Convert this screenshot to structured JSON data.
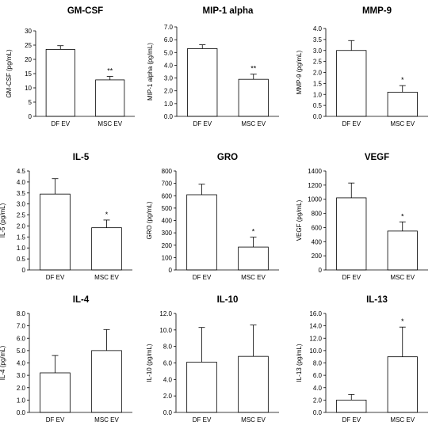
{
  "chart_data": [
    {
      "type": "bar",
      "title": "GM-CSF",
      "ylabel": "GM-CSF (pg/mL)",
      "categories": [
        "DF EV",
        "MSC EV"
      ],
      "values": [
        23.5,
        12.8
      ],
      "errors": [
        1.3,
        1.2
      ],
      "significance": [
        "",
        "**"
      ],
      "ylim": [
        0,
        30
      ],
      "yticks": [
        "0",
        "5",
        "10",
        "15",
        "20",
        "25",
        "30"
      ]
    },
    {
      "type": "bar",
      "title": "MIP-1 alpha",
      "ylabel": "MIP-1 alpha (pg/mL)",
      "categories": [
        "DF EV",
        "MSC EV"
      ],
      "values": [
        5.3,
        2.9
      ],
      "errors": [
        0.3,
        0.4
      ],
      "significance": [
        "",
        "**"
      ],
      "ylim": [
        0,
        7
      ],
      "yticks": [
        "0.0",
        "1.0",
        "2.0",
        "3.0",
        "4.0",
        "5.0",
        "6.0",
        "7.0"
      ]
    },
    {
      "type": "bar",
      "title": "MMP-9",
      "ylabel": "MMP-9 (pg/mL)",
      "categories": [
        "DF EV",
        "MSC EV"
      ],
      "values": [
        3.0,
        1.1
      ],
      "errors": [
        0.45,
        0.3
      ],
      "significance": [
        "",
        "*"
      ],
      "ylim": [
        0,
        4
      ],
      "yticks": [
        "0.0",
        "0.5",
        "1.0",
        "1.5",
        "2.0",
        "2.5",
        "3.0",
        "3.5",
        "4.0"
      ]
    },
    {
      "type": "bar",
      "title": "IL-5",
      "ylabel": "IL-5 (pg/mL)",
      "categories": [
        "DF EV",
        "MSC EV"
      ],
      "values": [
        3.45,
        1.92
      ],
      "errors": [
        0.7,
        0.35
      ],
      "significance": [
        "",
        "*"
      ],
      "ylim": [
        0,
        4.5
      ],
      "yticks": [
        "0",
        "0.5",
        "1.0",
        "1.5",
        "2.0",
        "2.5",
        "3.0",
        "3.5",
        "4.0",
        "4.5"
      ]
    },
    {
      "type": "bar",
      "title": "GRO",
      "ylabel": "GRO (pg/mL)",
      "categories": [
        "DF EV",
        "MSC EV"
      ],
      "values": [
        608,
        185
      ],
      "errors": [
        85,
        80
      ],
      "significance": [
        "",
        "*"
      ],
      "ylim": [
        0,
        800
      ],
      "yticks": [
        "0",
        "100",
        "200",
        "300",
        "400",
        "500",
        "600",
        "700",
        "800"
      ]
    },
    {
      "type": "bar",
      "title": "VEGF",
      "ylabel": "VEGF (pg/mL)",
      "categories": [
        "DF EV",
        "MSC EV"
      ],
      "values": [
        1020,
        550
      ],
      "errors": [
        210,
        130
      ],
      "significance": [
        "",
        "*"
      ],
      "ylim": [
        0,
        1400
      ],
      "yticks": [
        "0",
        "200",
        "400",
        "600",
        "800",
        "1000",
        "1200",
        "1400"
      ]
    },
    {
      "type": "bar",
      "title": "IL-4",
      "ylabel": "IL-4 (pg/mL)",
      "categories": [
        "DF EV",
        "MSC EV"
      ],
      "values": [
        3.2,
        5.0
      ],
      "errors": [
        1.4,
        1.7
      ],
      "significance": [
        "",
        ""
      ],
      "ylim": [
        0,
        8
      ],
      "yticks": [
        "0.0",
        "1.0",
        "2.0",
        "3.0",
        "4.0",
        "5.0",
        "6.0",
        "7.0",
        "8.0"
      ]
    },
    {
      "type": "bar",
      "title": "IL-10",
      "ylabel": "IL-10 (pg/mL)",
      "categories": [
        "DF EV",
        "MSC EV"
      ],
      "values": [
        6.1,
        6.8
      ],
      "errors": [
        4.2,
        3.8
      ],
      "significance": [
        "",
        ""
      ],
      "ylim": [
        0,
        12
      ],
      "yticks": [
        "0.0",
        "2.0",
        "4.0",
        "6.0",
        "8.0",
        "10.0",
        "12.0"
      ]
    },
    {
      "type": "bar",
      "title": "IL-13",
      "ylabel": "IL-13 (pg/mL)",
      "categories": [
        "DF EV",
        "MSC EV"
      ],
      "values": [
        2.0,
        9.0
      ],
      "errors": [
        0.9,
        4.8
      ],
      "significance": [
        "",
        "*"
      ],
      "ylim": [
        0,
        16
      ],
      "yticks": [
        "0.0",
        "2.0",
        "4.0",
        "6.0",
        "8.0",
        "10.0",
        "12.0",
        "14.0",
        "16.0"
      ]
    }
  ]
}
